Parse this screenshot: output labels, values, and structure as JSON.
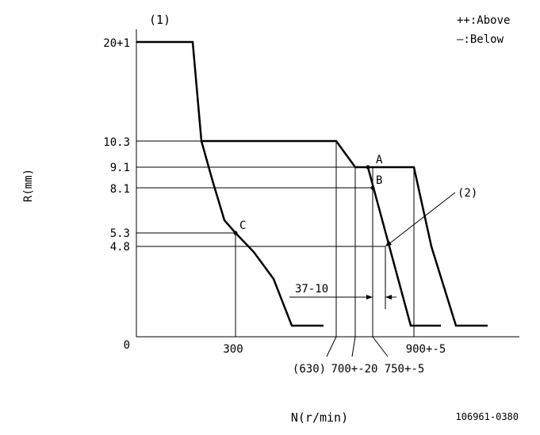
{
  "figure_label": "(1)",
  "legend": [
    "++:Above",
    "—:Below"
  ],
  "ylabel": "R(mm)",
  "xlabel": "N(r/min)",
  "doc_code": "106961-0380",
  "annotations": {
    "point_a": "A",
    "point_b": "B",
    "point_c": "C",
    "callout": "(2)",
    "gap": "37-10"
  },
  "y_ticks": [
    {
      "label": "20+1",
      "r": 20
    },
    {
      "label": "10.3",
      "r": 10.3
    },
    {
      "label": "9.1",
      "r": 9.1
    },
    {
      "label": "8.1",
      "r": 8.1
    },
    {
      "label": "5.3",
      "r": 5.3
    },
    {
      "label": "4.8",
      "r": 4.8
    },
    {
      "label": "0",
      "r": 0
    }
  ],
  "x_ticks": [
    {
      "label": "300",
      "n": 300
    },
    {
      "label": "(630)",
      "n": 630
    },
    {
      "label": "700+-20",
      "n": 700
    },
    {
      "label": "750+-5",
      "n": 750
    },
    {
      "label": "900+-5",
      "n": 900
    }
  ],
  "chart_data": {
    "type": "line",
    "title": "",
    "xlabel": "N(r/min)",
    "ylabel": "R(mm)",
    "grid": false,
    "series": [
      {
        "values": [
          [
            0,
            20
          ],
          [
            190,
            20
          ],
          [
            220,
            10.3
          ],
          [
            640,
            10.3
          ],
          [
            700,
            9.1
          ],
          [
            750,
            9.1
          ],
          [
            850,
            0
          ],
          [
            920,
            0
          ]
        ]
      },
      {
        "values": [
          [
            640,
            10.3
          ],
          [
            700,
            9.1
          ],
          [
            900,
            9.1
          ],
          [
            1000,
            0
          ],
          [
            1060,
            0
          ]
        ]
      },
      {
        "values": [
          [
            220,
            10.3
          ],
          [
            280,
            5.3
          ],
          [
            310,
            5.3
          ],
          [
            390,
            0
          ],
          [
            450,
            0
          ]
        ]
      }
    ],
    "points": [
      {
        "label": "A",
        "n": 750,
        "r": 9.1
      },
      {
        "label": "B",
        "n": 750,
        "r": 8.1
      },
      {
        "label": "C",
        "n": 300,
        "r": 5.3
      }
    ]
  }
}
